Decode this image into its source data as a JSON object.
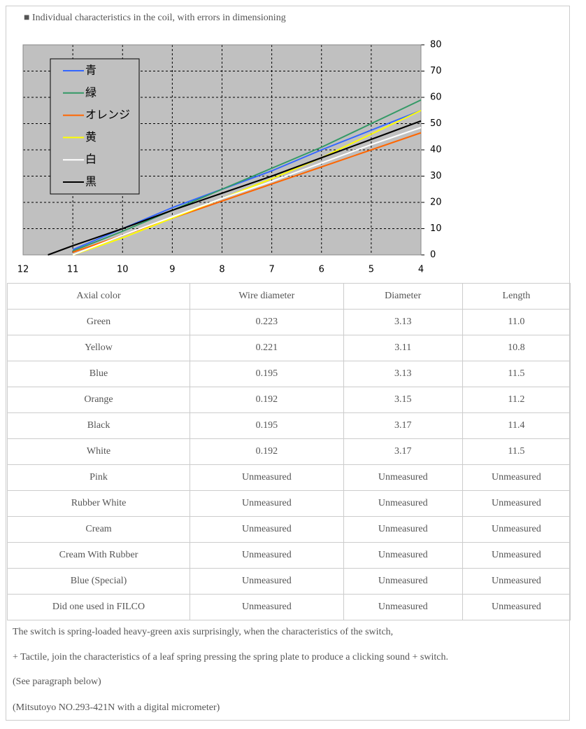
{
  "heading": "■ Individual characteristics in the coil, with errors in dimensioning",
  "chart_data": {
    "type": "line",
    "x": [
      11.5,
      11,
      10,
      9,
      8,
      7,
      6,
      5,
      4
    ],
    "xlim": [
      12,
      4
    ],
    "xticks": [
      12,
      11,
      10,
      9,
      8,
      7,
      6,
      5,
      4
    ],
    "ylim": [
      0,
      80
    ],
    "yticks": [
      0,
      10,
      20,
      30,
      40,
      50,
      60,
      70,
      80
    ],
    "grid": true,
    "legend": "upper-left",
    "series": [
      {
        "name": "青",
        "color": "#3366ff",
        "values": [
          null,
          2,
          10,
          18,
          25,
          32,
          40,
          47.5,
          55
        ]
      },
      {
        "name": "緑",
        "color": "#339966",
        "values": [
          null,
          1.5,
          9,
          17,
          25,
          33,
          41,
          50,
          59
        ]
      },
      {
        "name": "オレンジ",
        "color": "#ff6600",
        "values": [
          null,
          1,
          7.5,
          14,
          20.5,
          27,
          33.5,
          40,
          46.5
        ]
      },
      {
        "name": "黄",
        "color": "#ffff00",
        "values": [
          null,
          0,
          6.5,
          14,
          21.5,
          29,
          37,
          46,
          55
        ]
      },
      {
        "name": "白",
        "color": "#ffffff",
        "values": [
          null,
          0,
          7.5,
          14.5,
          21.5,
          28,
          35,
          42,
          48.5
        ]
      },
      {
        "name": "黒",
        "color": "#000000",
        "values": [
          0,
          3.5,
          10,
          17,
          23.5,
          30,
          37,
          44,
          51
        ]
      }
    ]
  },
  "table": {
    "header": [
      "Axial color",
      "Wire diameter",
      "Diameter",
      "Length"
    ],
    "rows": [
      [
        "Green",
        "0.223",
        "3.13",
        "11.0"
      ],
      [
        "Yellow",
        "0.221",
        "3.11",
        "10.8"
      ],
      [
        "Blue",
        "0.195",
        "3.13",
        "11.5"
      ],
      [
        "Orange",
        "0.192",
        "3.15",
        "11.2"
      ],
      [
        "Black",
        "0.195",
        "3.17",
        "11.4"
      ],
      [
        "White",
        "0.192",
        "3.17",
        "11.5"
      ],
      [
        "Pink",
        "Unmeasured",
        "Unmeasured",
        "Unmeasured"
      ],
      [
        "Rubber White",
        "Unmeasured",
        "Unmeasured",
        "Unmeasured"
      ],
      [
        "Cream",
        "Unmeasured",
        "Unmeasured",
        "Unmeasured"
      ],
      [
        "Cream With Rubber",
        "Unmeasured",
        "Unmeasured",
        "Unmeasured"
      ],
      [
        "Blue (Special)",
        "Unmeasured",
        "Unmeasured",
        "Unmeasured"
      ],
      [
        "Did one used in FILCO",
        "Unmeasured",
        "Unmeasured",
        "Unmeasured"
      ]
    ]
  },
  "notes": [
    "The switch is spring-loaded heavy-green axis surprisingly, when the characteristics of the switch,",
    "+ Tactile, join the characteristics of a leaf spring pressing the spring plate to produce a clicking sound + switch.",
    "(See paragraph below)",
    "(Mitsutoyo NO.293-421N with a digital micrometer)"
  ]
}
